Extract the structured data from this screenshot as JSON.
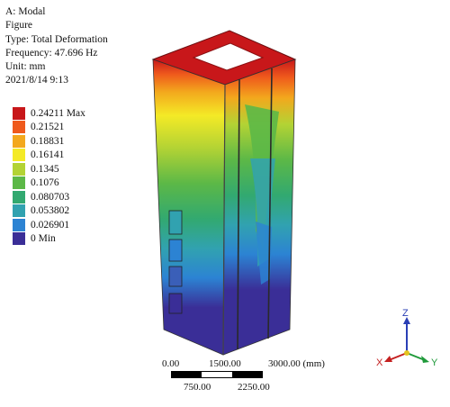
{
  "info": {
    "line1": "A: Modal",
    "line2": "Figure",
    "line3": "Type: Total Deformation",
    "line4": "Frequency: 47.696 Hz",
    "line5": "Unit: mm",
    "line6": "2021/8/14 9:13"
  },
  "legend": {
    "items": [
      {
        "label": "0.24211 Max",
        "color": "#c8171a"
      },
      {
        "label": "0.21521",
        "color": "#ef5a1c"
      },
      {
        "label": "0.18831",
        "color": "#f3a81d"
      },
      {
        "label": "0.16141",
        "color": "#f4ea26"
      },
      {
        "label": "0.1345",
        "color": "#b3d334"
      },
      {
        "label": "0.1076",
        "color": "#5cb847"
      },
      {
        "label": "0.080703",
        "color": "#32a970"
      },
      {
        "label": "0.053802",
        "color": "#31a2b0"
      },
      {
        "label": "0.026901",
        "color": "#2c83d3"
      },
      {
        "label": "0 Min",
        "color": "#3a2e97"
      }
    ]
  },
  "scale": {
    "label_0": "0.00",
    "label_1500": "1500.00",
    "label_3000": "3000.00 (mm)",
    "label_750": "750.00",
    "label_2250": "2250.00"
  },
  "triad": {
    "z": "Z",
    "x": "X",
    "y": "Y"
  }
}
